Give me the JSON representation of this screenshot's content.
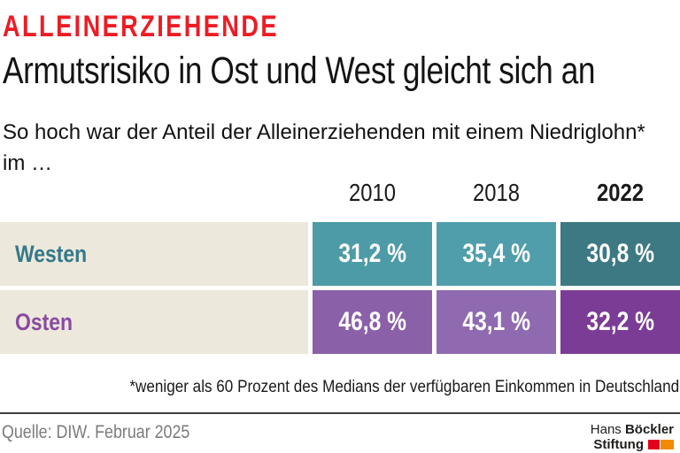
{
  "header": {
    "kicker": "ALLEINERZIEHENDE",
    "title": "Armutsrisiko in Ost und West gleicht sich an",
    "subtitle": "So hoch war der Anteil der Alleinerziehenden mit einem Niedriglohn* im …"
  },
  "table": {
    "columns": [
      "2010",
      "2018",
      "2022"
    ],
    "rows": [
      {
        "label": "Westen",
        "values": [
          "31,2 %",
          "35,4 %",
          "30,8 %"
        ]
      },
      {
        "label": "Osten",
        "values": [
          "46,8 %",
          "43,1 %",
          "32,2 %"
        ]
      }
    ]
  },
  "footnote": "*weniger als 60 Prozent des Medians der verfügbaren Einkommen in Deutschland",
  "source": "Quelle: DIW. Februar 2025",
  "logo": {
    "hans": "Hans",
    "boeckler": "Böckler",
    "stiftung": "Stiftung"
  },
  "colors": {
    "kicker_red": "#ed1c24",
    "title_black": "#141414",
    "label_bg_beige": "#ece9dc",
    "west_label": "#35788a",
    "ost_label": "#8a4aa0",
    "west_2010": "#4d9ba6",
    "west_2018": "#509eab",
    "west_2022": "#3d7983",
    "ost_2010": "#8a60a8",
    "ost_2018": "#8f6ab0",
    "ost_2022": "#7b3c96",
    "source_gray": "#7b7b7a",
    "logo_red": "#e2001a",
    "logo_orange": "#f18a00"
  },
  "chart_data": {
    "type": "table",
    "title": "Armutsrisiko in Ost und West gleicht sich an",
    "subtitle": "So hoch war der Anteil der Alleinerziehenden mit einem Niedriglohn* im …",
    "categories": [
      "2010",
      "2018",
      "2022"
    ],
    "series": [
      {
        "name": "Westen",
        "values": [
          31.2,
          35.4,
          30.8
        ]
      },
      {
        "name": "Osten",
        "values": [
          46.8,
          43.1,
          32.2
        ]
      }
    ],
    "unit": "%",
    "footnote": "*weniger als 60 Prozent des Medians der verfügbaren Einkommen in Deutschland",
    "source": "Quelle: DIW. Februar 2025"
  }
}
